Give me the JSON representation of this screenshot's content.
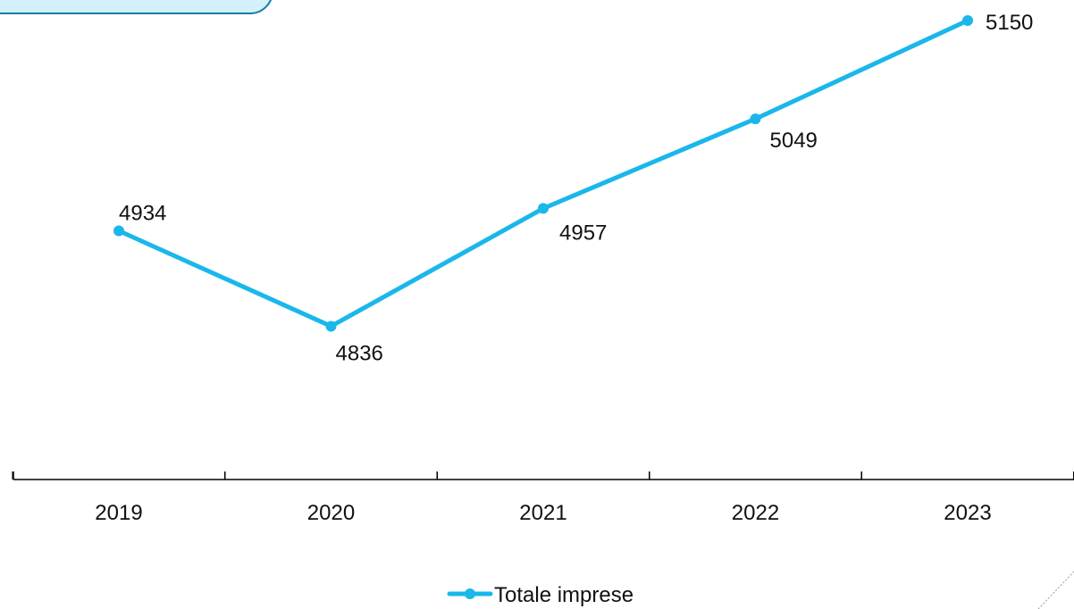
{
  "chart_data": {
    "type": "line",
    "title": "",
    "xlabel": "",
    "ylabel": "",
    "categories": [
      "2019",
      "2020",
      "2021",
      "2022",
      "2023"
    ],
    "series": [
      {
        "name": "Totale imprese",
        "values": [
          4934,
          4836,
          4957,
          5049,
          5150
        ],
        "color": "#1ab7ea"
      }
    ],
    "ylim": [
      4740,
      5150
    ],
    "grid": false,
    "legend": "bottom",
    "data_labels": true
  }
}
